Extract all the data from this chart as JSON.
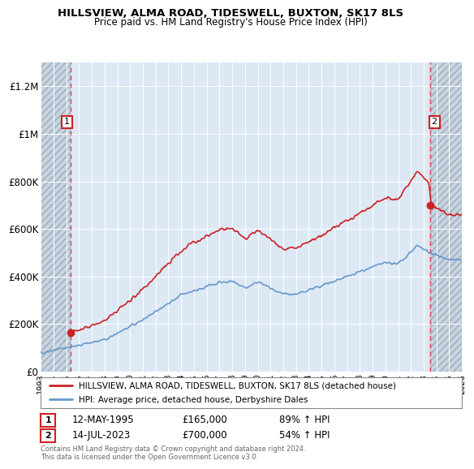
{
  "title_line1": "HILLSVIEW, ALMA ROAD, TIDESWELL, BUXTON, SK17 8LS",
  "title_line2": "Price paid vs. HM Land Registry's House Price Index (HPI)",
  "xlim": [
    1993.0,
    2026.0
  ],
  "ylim": [
    0,
    1300000
  ],
  "yticks": [
    0,
    200000,
    400000,
    600000,
    800000,
    1000000,
    1200000
  ],
  "ytick_labels": [
    "£0",
    "£200K",
    "£400K",
    "£600K",
    "£800K",
    "£1M",
    "£1.2M"
  ],
  "xticks": [
    1993,
    1994,
    1995,
    1996,
    1997,
    1998,
    1999,
    2000,
    2001,
    2002,
    2003,
    2004,
    2005,
    2006,
    2007,
    2008,
    2009,
    2010,
    2011,
    2012,
    2013,
    2014,
    2015,
    2016,
    2017,
    2018,
    2019,
    2020,
    2021,
    2022,
    2023,
    2024,
    2025,
    2026
  ],
  "transaction1_date": 1995.36,
  "transaction1_price": 165000,
  "transaction2_date": 2023.54,
  "transaction2_price": 700000,
  "hpi_color": "#6699cc",
  "price_color": "#cc2222",
  "background_plot": "#dde8f5",
  "grid_color": "#ffffff",
  "dashed_line_color": "#dd4444",
  "legend_line1": "HILLSVIEW, ALMA ROAD, TIDESWELL, BUXTON, SK17 8LS (detached house)",
  "legend_line2": "HPI: Average price, detached house, Derbyshire Dales",
  "note1_num": "1",
  "note1_date": "12-MAY-1995",
  "note1_price": "£165,000",
  "note1_hpi": "89% ↑ HPI",
  "note2_num": "2",
  "note2_date": "14-JUL-2023",
  "note2_price": "£700,000",
  "note2_hpi": "54% ↑ HPI",
  "footer": "Contains HM Land Registry data © Crown copyright and database right 2024.\nThis data is licensed under the Open Government Licence v3.0."
}
